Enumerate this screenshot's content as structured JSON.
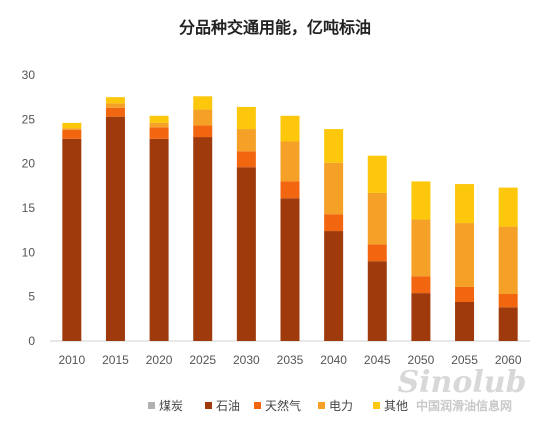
{
  "chart_data": {
    "type": "bar",
    "stacked": true,
    "title": "分品种交通用能，亿吨标油",
    "categories": [
      "2010",
      "2015",
      "2020",
      "2025",
      "2030",
      "2035",
      "2040",
      "2045",
      "2050",
      "2055",
      "2060"
    ],
    "ylim": [
      0,
      30
    ],
    "yticks": [
      0,
      5,
      10,
      15,
      20,
      25,
      30
    ],
    "grid": false,
    "legend_position": "bottom",
    "series": [
      {
        "name": "煤炭",
        "color": "#b0b0b0",
        "values": [
          0,
          0,
          0,
          0,
          0,
          0,
          0,
          0,
          0,
          0,
          0
        ]
      },
      {
        "name": "石油",
        "color": "#9e3a0c",
        "values": [
          22.8,
          25.3,
          22.8,
          23.0,
          19.6,
          16.1,
          12.4,
          9.0,
          5.4,
          4.4,
          3.8
        ]
      },
      {
        "name": "天然气",
        "color": "#f2660f",
        "values": [
          1.0,
          1.0,
          1.3,
          1.3,
          1.8,
          1.9,
          1.9,
          1.9,
          1.9,
          1.7,
          1.5
        ]
      },
      {
        "name": "电力",
        "color": "#f5a026",
        "values": [
          0.2,
          0.5,
          0.5,
          1.8,
          2.5,
          4.5,
          5.8,
          5.8,
          6.4,
          7.2,
          7.6
        ]
      },
      {
        "name": "其他",
        "color": "#fdc70c",
        "values": [
          0.6,
          0.7,
          0.8,
          1.5,
          2.5,
          2.9,
          3.8,
          4.2,
          4.3,
          4.4,
          4.4
        ]
      }
    ]
  },
  "watermark": {
    "logo": "Sinolub",
    "text": "中国润滑油信息网"
  }
}
